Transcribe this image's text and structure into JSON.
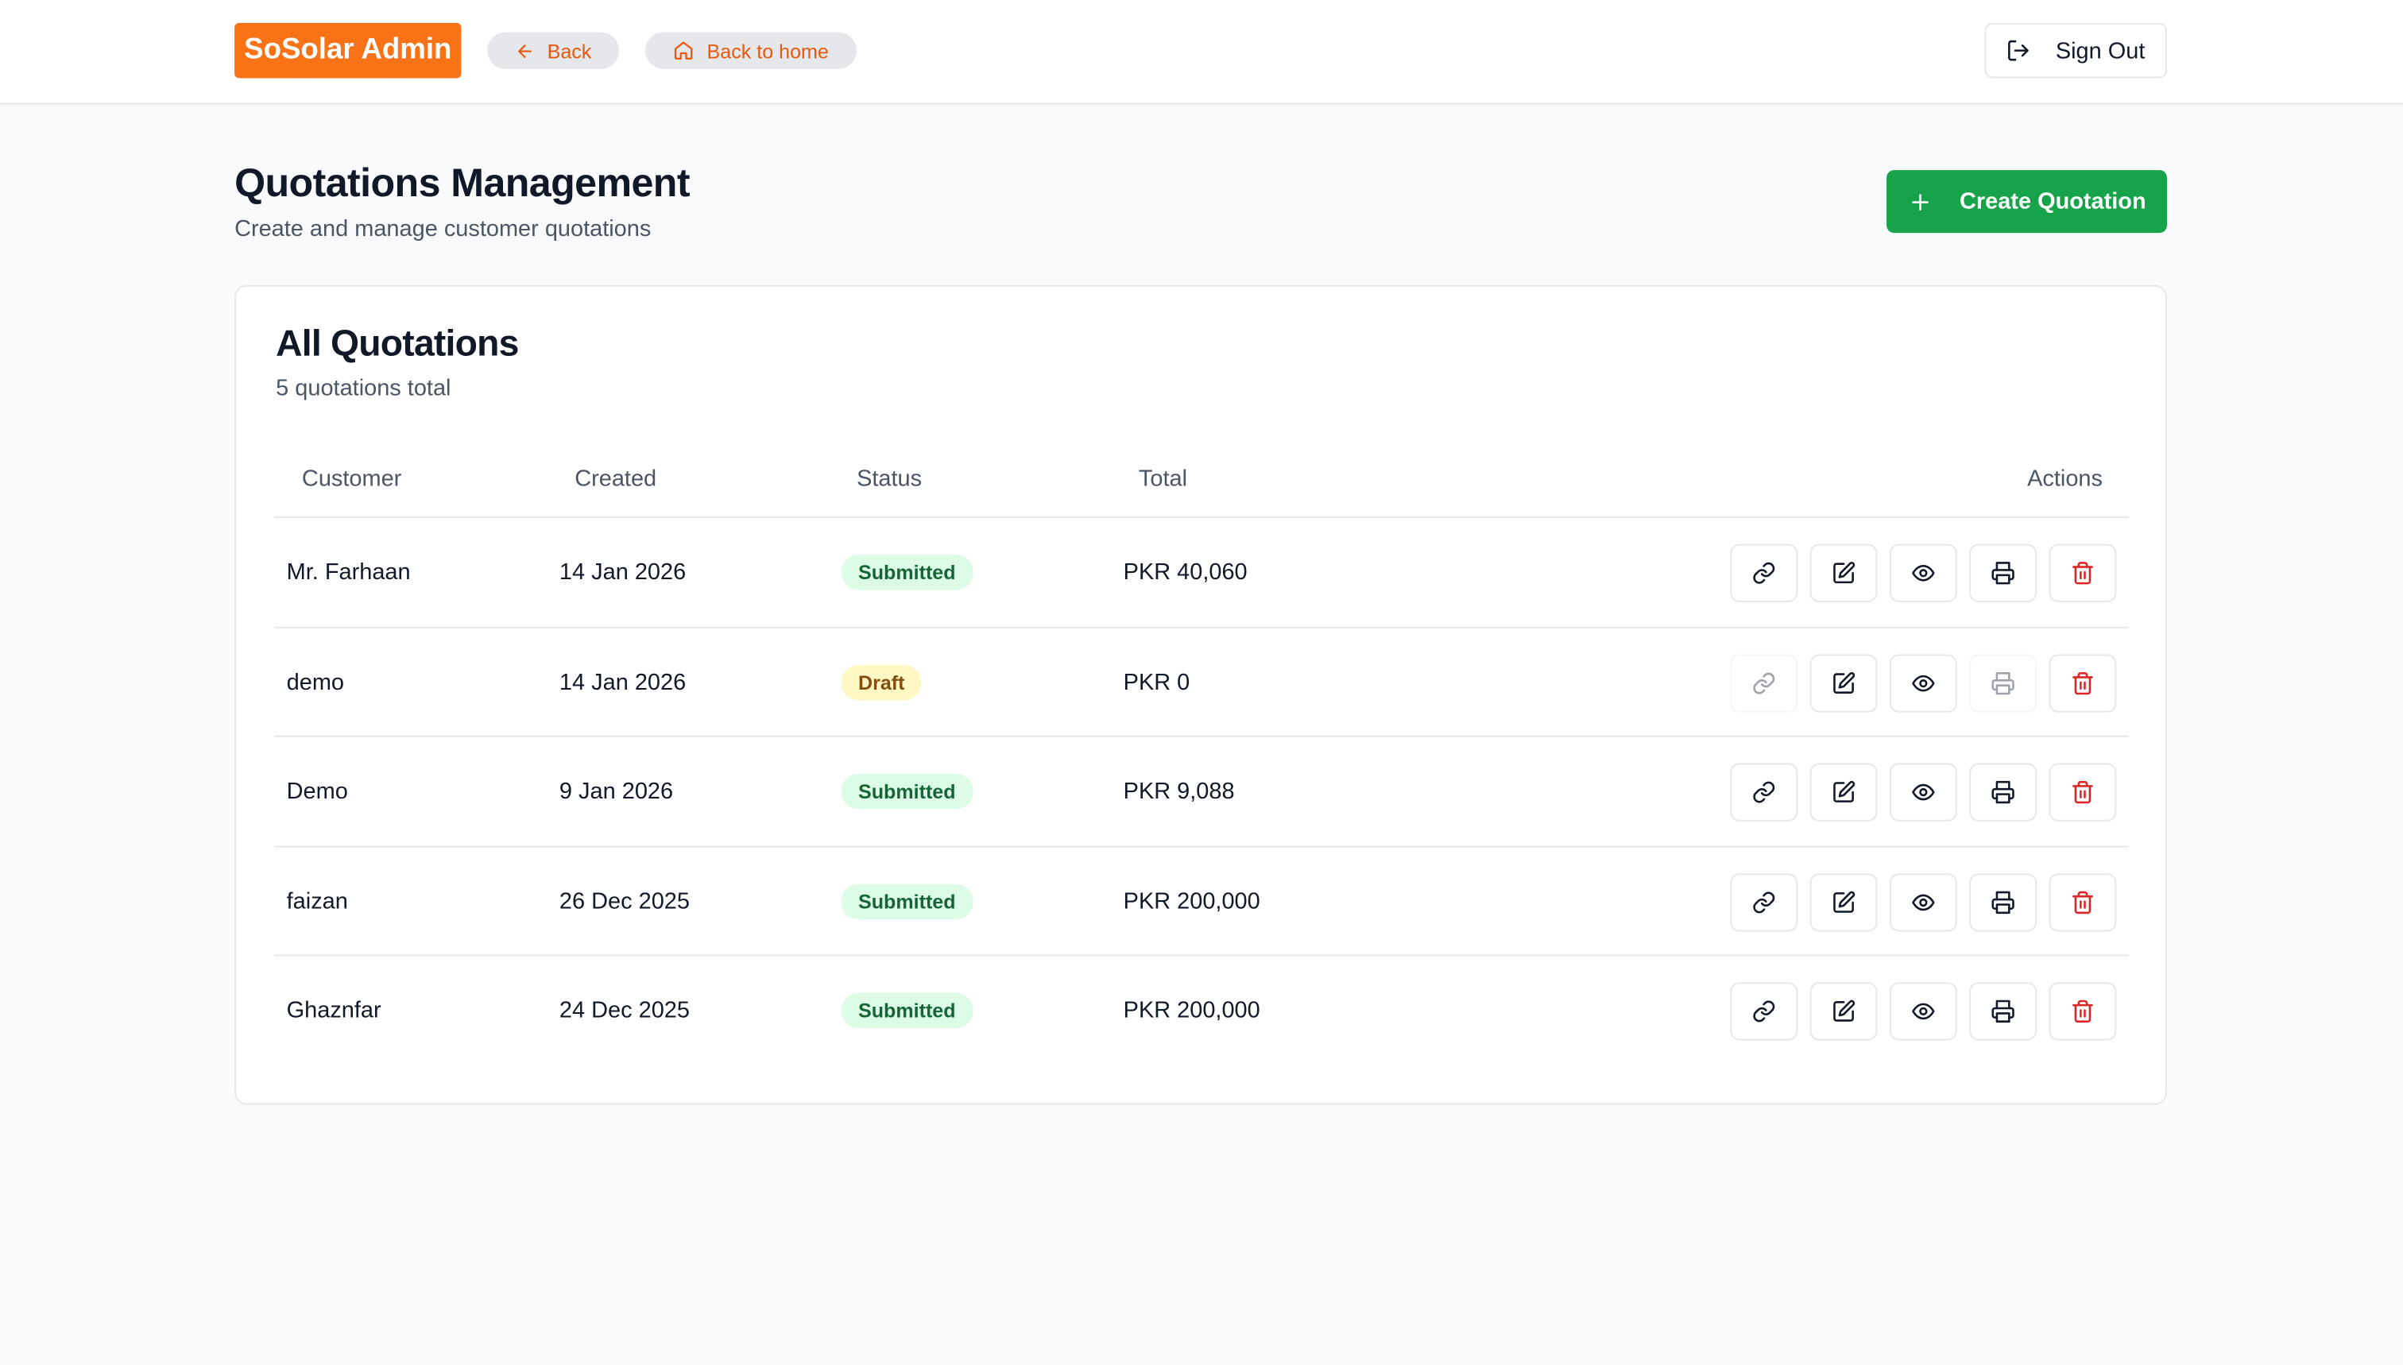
{
  "header": {
    "brand": "SoSolar Admin",
    "back": "Back",
    "home": "Back to home",
    "sign_out": "Sign Out"
  },
  "page": {
    "title": "Quotations Management",
    "subtitle": "Create and manage customer quotations",
    "create_button": "Create Quotation"
  },
  "card": {
    "title": "All Quotations",
    "subtitle": "5 quotations total"
  },
  "table": {
    "columns": [
      "Customer",
      "Created",
      "Status",
      "Total",
      "Actions"
    ],
    "rows": [
      [
        "Mr. Farhaan",
        "14 Jan 2026",
        "Submitted",
        "PKR 40,060"
      ],
      [
        "demo",
        "14 Jan 2026",
        "Draft",
        "PKR 0"
      ],
      [
        "Demo",
        "9 Jan 2026",
        "Submitted",
        "PKR 9,088"
      ],
      [
        "faizan",
        "26 Dec 2025",
        "Submitted",
        "PKR 200,000"
      ],
      [
        "Ghaznfar",
        "24 Dec 2025",
        "Submitted",
        "PKR 200,000"
      ]
    ]
  }
}
